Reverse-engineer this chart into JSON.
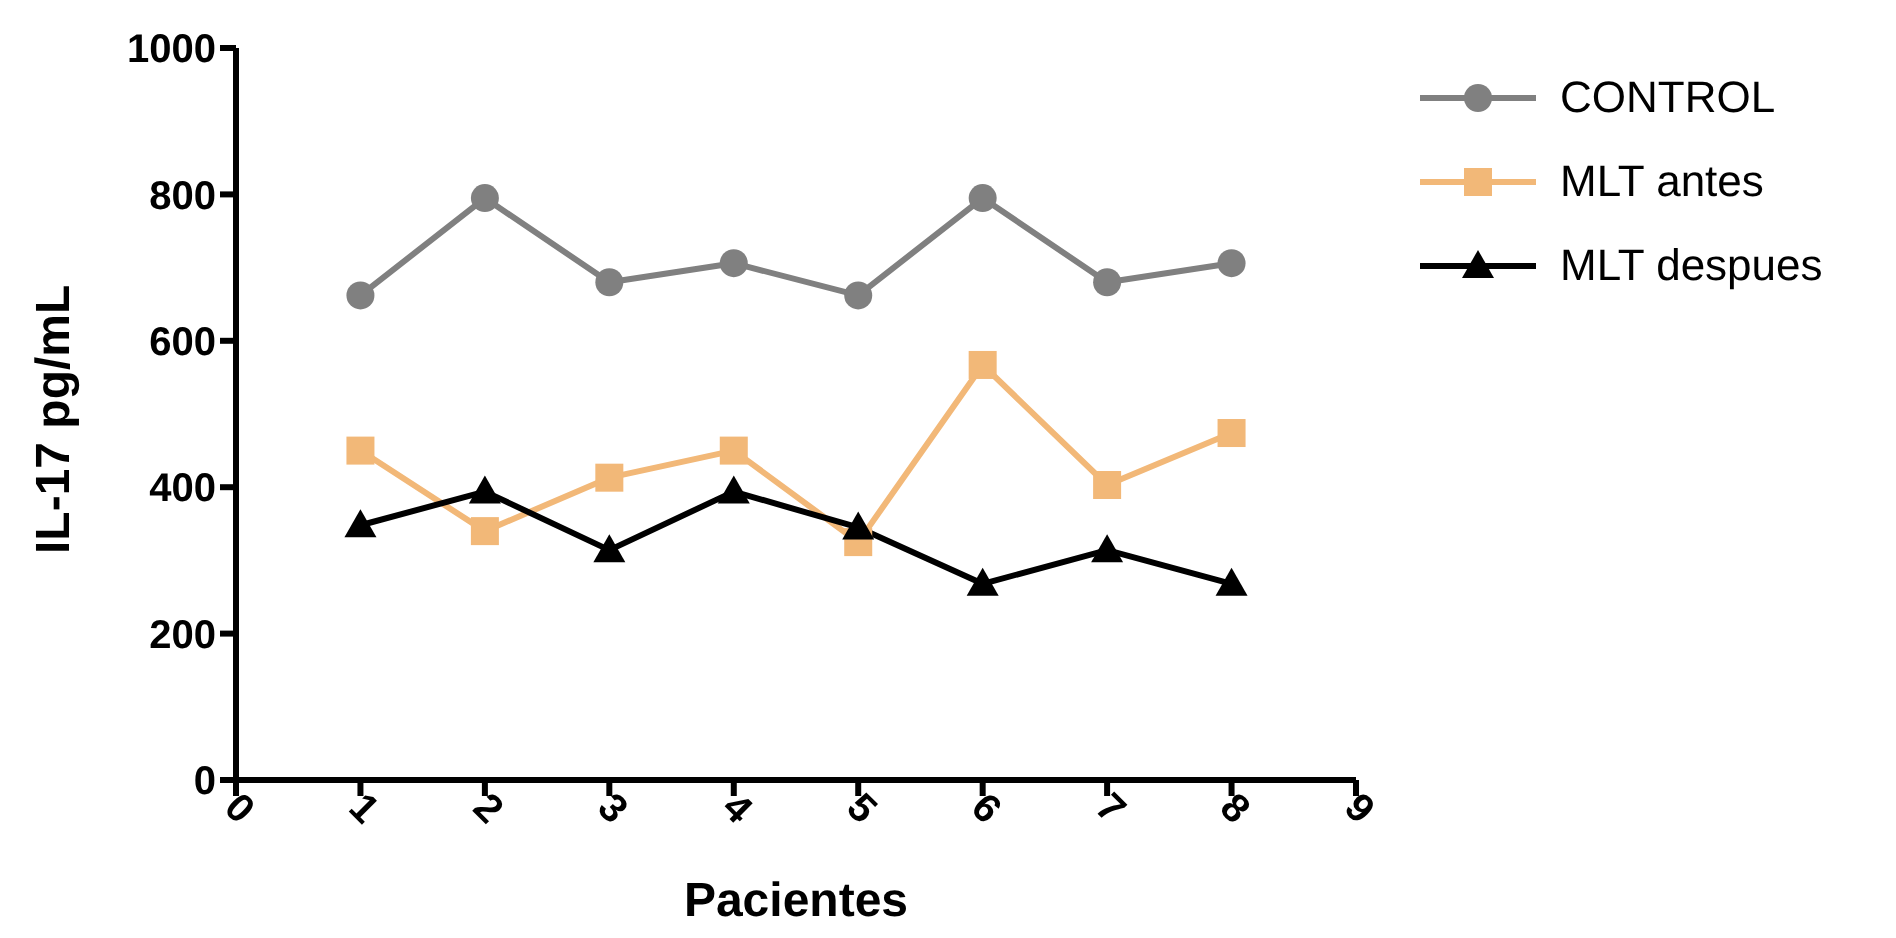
{
  "chart_data": {
    "type": "line",
    "xlabel": "Pacientes",
    "ylabel": "IL-17 pg/mL",
    "x": [
      1,
      2,
      3,
      4,
      5,
      6,
      7,
      8
    ],
    "series": [
      {
        "name": "CONTROL",
        "color": "#808080",
        "marker": "circle",
        "values": [
          662,
          795,
          680,
          706,
          662,
          795,
          680,
          706
        ]
      },
      {
        "name": "MLT antes",
        "color": "#f2b878",
        "marker": "square",
        "values": [
          450,
          340,
          413,
          450,
          325,
          567,
          403,
          474
        ]
      },
      {
        "name": "MLT despues",
        "color": "#000000",
        "marker": "triangle",
        "values": [
          348,
          394,
          314,
          394,
          345,
          268,
          314,
          268
        ]
      }
    ],
    "xlim": [
      0,
      9
    ],
    "xticks": [
      0,
      1,
      2,
      3,
      4,
      5,
      6,
      7,
      8,
      9
    ],
    "ylim": [
      0,
      1000
    ],
    "yticks": [
      0,
      200,
      400,
      600,
      800,
      1000
    ],
    "grid": false,
    "legend": "right",
    "line_style": "solid"
  }
}
